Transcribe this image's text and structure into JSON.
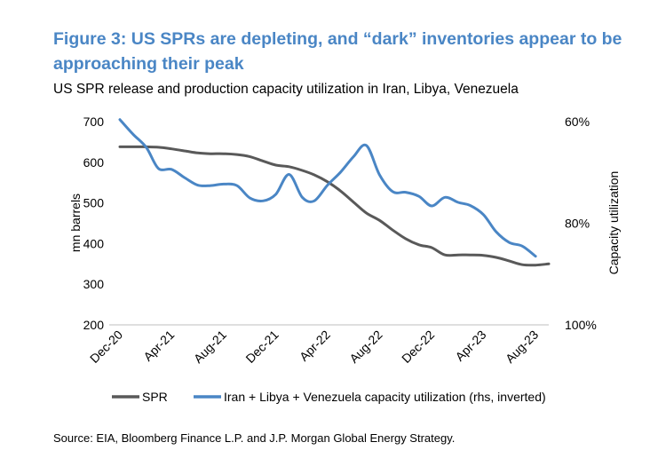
{
  "figure": {
    "title": "Figure 3: US SPRs are depleting, and “dark” inventories appear to be approaching their peak",
    "subtitle": "US SPR release and production capacity utilization in Iran, Libya, Venezuela",
    "source": "Source: EIA, Bloomberg Finance L.P. and J.P. Morgan Global Energy Strategy."
  },
  "chart_data": {
    "type": "line",
    "x_ticks": [
      "Dec-20",
      "Apr-21",
      "Aug-21",
      "Dec-21",
      "Apr-22",
      "Aug-22",
      "Dec-22",
      "Apr-23",
      "Aug-23"
    ],
    "ylabel": "mn barrels",
    "ylim": [
      200,
      700
    ],
    "yticks": [
      200,
      300,
      400,
      500,
      600,
      700
    ],
    "y2label": "Capacity utilization",
    "y2lim": [
      60,
      100
    ],
    "y2_inverted": true,
    "y2ticks": [
      "60%",
      "80%",
      "100%"
    ],
    "y2tick_values": [
      60,
      80,
      100
    ],
    "grid": false,
    "legend_position": "bottom",
    "series": [
      {
        "name": "SPR",
        "axis": "left",
        "color": "#595959",
        "x": [
          "2020-12-01",
          "2021-01-01",
          "2021-02-01",
          "2021-03-01",
          "2021-04-01",
          "2021-05-01",
          "2021-06-01",
          "2021-07-01",
          "2021-08-01",
          "2021-09-01",
          "2021-10-01",
          "2021-11-01",
          "2021-12-01",
          "2022-01-01",
          "2022-02-01",
          "2022-03-01",
          "2022-04-01",
          "2022-05-01",
          "2022-06-01",
          "2022-07-01",
          "2022-08-01",
          "2022-09-01",
          "2022-10-01",
          "2022-11-01",
          "2022-12-01",
          "2023-01-01",
          "2023-02-01",
          "2023-03-01",
          "2023-04-01",
          "2023-05-01",
          "2023-06-01",
          "2023-07-01",
          "2023-08-01",
          "2023-09-01"
        ],
        "values": [
          638,
          638,
          638,
          637,
          633,
          628,
          623,
          621,
          621,
          619,
          614,
          603,
          593,
          589,
          580,
          569,
          552,
          530,
          502,
          475,
          457,
          433,
          412,
          397,
          390,
          372,
          372,
          372,
          371,
          366,
          357,
          348,
          347,
          350
        ]
      },
      {
        "name": "Iran + Libya + Venezuela capacity utilization (rhs, inverted)",
        "axis": "right",
        "color": "#4a86c5",
        "x": [
          "2020-12-01",
          "2021-01-01",
          "2021-02-01",
          "2021-03-01",
          "2021-04-01",
          "2021-05-01",
          "2021-06-01",
          "2021-07-01",
          "2021-08-01",
          "2021-09-01",
          "2021-10-01",
          "2021-11-01",
          "2021-12-01",
          "2022-01-01",
          "2022-02-01",
          "2022-03-01",
          "2022-04-01",
          "2022-05-01",
          "2022-06-01",
          "2022-07-01",
          "2022-08-01",
          "2022-09-01",
          "2022-10-01",
          "2022-11-01",
          "2022-12-01",
          "2023-01-01",
          "2023-02-01",
          "2023-03-01",
          "2023-04-01",
          "2023-05-01",
          "2023-06-01",
          "2023-07-01",
          "2023-08-01"
        ],
        "values": [
          59.6,
          62.5,
          65.1,
          69.2,
          69.4,
          71.0,
          72.5,
          72.6,
          72.3,
          72.6,
          75.0,
          75.6,
          74.3,
          70.4,
          74.9,
          75.6,
          72.5,
          70.0,
          66.9,
          64.7,
          70.5,
          73.8,
          73.9,
          74.7,
          76.6,
          74.9,
          75.9,
          76.5,
          78.3,
          81.7,
          83.8,
          84.5,
          86.5
        ]
      }
    ]
  }
}
